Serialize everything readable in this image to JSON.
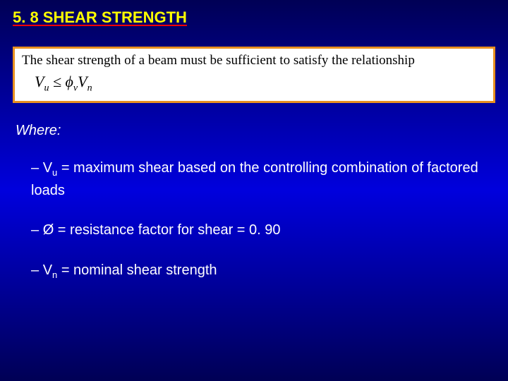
{
  "title": "5. 8 SHEAR STRENGTH",
  "equation": {
    "intro": "The shear strength of a beam must be sufficient to satisfy the relationship",
    "lhs_sym": "V",
    "lhs_sub": "u",
    "op": " ≤ ",
    "phi": "ϕ",
    "phi_sub": "v",
    "rhs_sym": "V",
    "rhs_sub": "n"
  },
  "where_label": "Where:",
  "definitions": [
    {
      "dash": "– ",
      "sym": "V",
      "sub": "u",
      "text": " = maximum shear based on the controlling combination of factored loads"
    },
    {
      "dash": "– ",
      "sym": "Ø",
      "sub": "",
      "text": " = resistance factor for shear = 0. 90"
    },
    {
      "dash": "– ",
      "sym": "V",
      "sub": "n",
      "text": " = nominal shear strength"
    }
  ],
  "colors": {
    "title_color": "#ffff00",
    "underline_color": "#ff0000",
    "box_bg": "#ffffff",
    "box_border": "#e89020",
    "body_text": "#ffffff",
    "eq_text": "#000000"
  }
}
